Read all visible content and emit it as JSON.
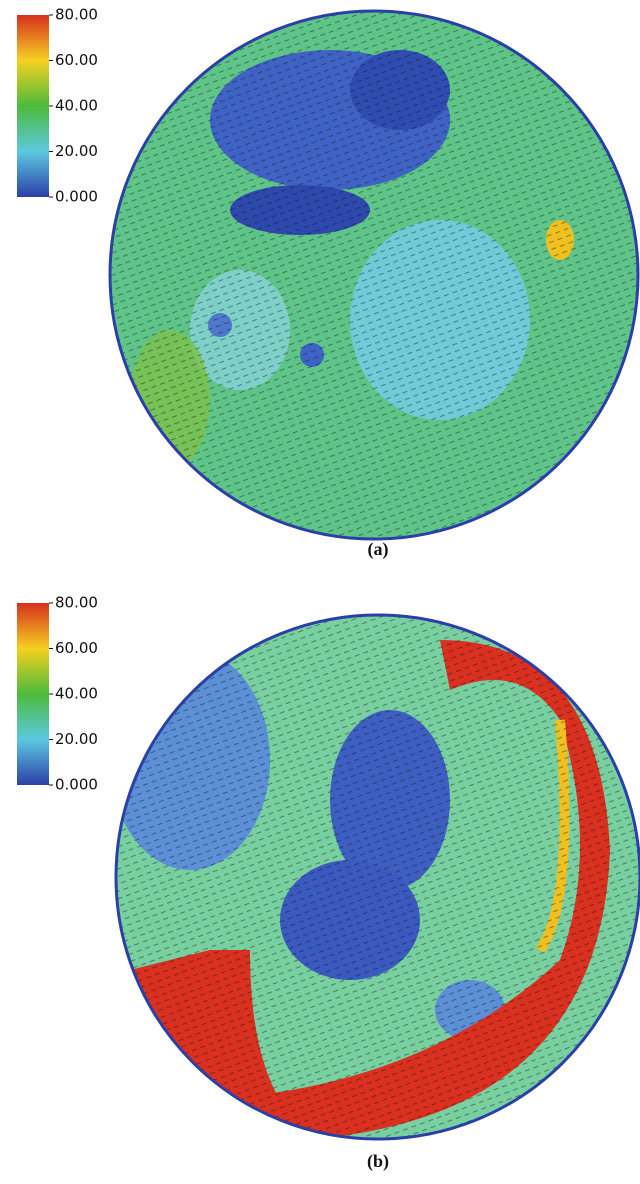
{
  "panels": [
    {
      "colorbar": {
        "ticks": [
          "80.00",
          "60.00",
          "40.00",
          "20.00",
          "0.000"
        ]
      },
      "caption": "(a)"
    },
    {
      "colorbar": {
        "ticks": [
          "80.00",
          "60.00",
          "40.00",
          "20.00",
          "0.000"
        ]
      },
      "caption": "(b)"
    }
  ]
}
